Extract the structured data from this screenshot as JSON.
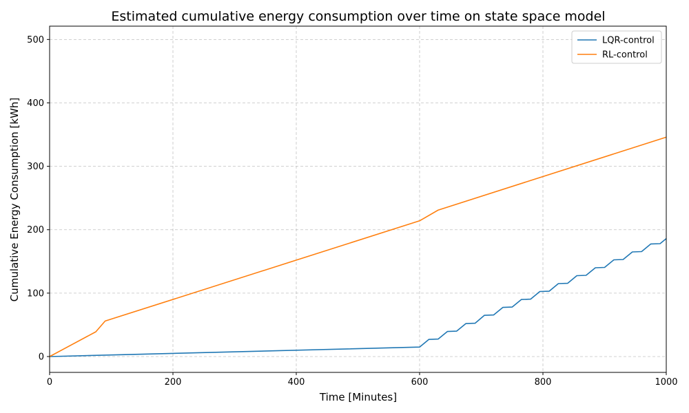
{
  "chart_data": {
    "type": "line",
    "title": "Estimated cumulative energy consumption over time on state space model",
    "xlabel": "Time [Minutes]",
    "ylabel": "Cumulative Energy Consumption [kWh]",
    "xlim": [
      0,
      1000
    ],
    "ylim": [
      -25,
      521
    ],
    "xticks": [
      0,
      200,
      400,
      600,
      800,
      1000
    ],
    "yticks": [
      0,
      100,
      200,
      300,
      400,
      500
    ],
    "grid": true,
    "grid_style": "dashed",
    "legend_position": "top-right",
    "series": [
      {
        "name": "LQR-control",
        "color": "#1f77b4",
        "points": [
          [
            0,
            0
          ],
          [
            600,
            15
          ],
          [
            615,
            27
          ],
          [
            630,
            27.5
          ],
          [
            645,
            39.5
          ],
          [
            660,
            40
          ],
          [
            675,
            52
          ],
          [
            690,
            52.5
          ],
          [
            705,
            65
          ],
          [
            720,
            65.5
          ],
          [
            735,
            77.5
          ],
          [
            750,
            78
          ],
          [
            765,
            90
          ],
          [
            780,
            90.5
          ],
          [
            795,
            102.5
          ],
          [
            810,
            103
          ],
          [
            825,
            115
          ],
          [
            840,
            115.5
          ],
          [
            855,
            127.5
          ],
          [
            870,
            128
          ],
          [
            885,
            140
          ],
          [
            900,
            140.5
          ],
          [
            915,
            152.5
          ],
          [
            930,
            153
          ],
          [
            945,
            165
          ],
          [
            960,
            165.5
          ],
          [
            975,
            177.5
          ],
          [
            990,
            178
          ],
          [
            1000,
            186
          ]
        ]
      },
      {
        "name": "RL-control",
        "color": "#ff7f0e",
        "points": [
          [
            0,
            0
          ],
          [
            75,
            39
          ],
          [
            90,
            56
          ],
          [
            600,
            214
          ],
          [
            630,
            231
          ],
          [
            1000,
            346
          ]
        ]
      }
    ]
  }
}
